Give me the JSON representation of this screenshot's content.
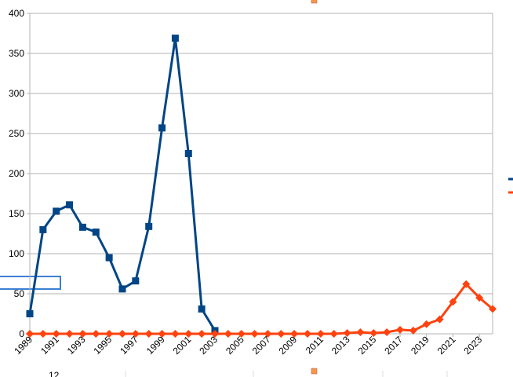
{
  "chart_data": {
    "type": "line",
    "x": [
      1989,
      1990,
      1991,
      1992,
      1993,
      1994,
      1995,
      1996,
      1997,
      1998,
      1999,
      2000,
      2001,
      2002,
      2003,
      2004,
      2005,
      2006,
      2007,
      2008,
      2009,
      2010,
      2011,
      2012,
      2013,
      2014,
      2015,
      2016,
      2017,
      2018,
      2019,
      2020,
      2021,
      2022,
      2023,
      2024
    ],
    "xlim": [
      1989,
      2024
    ],
    "xticks": [
      1989,
      1991,
      1993,
      1995,
      1997,
      1999,
      2001,
      2003,
      2005,
      2007,
      2009,
      2011,
      2013,
      2015,
      2017,
      2019,
      2021,
      2023
    ],
    "ylim": [
      0,
      400
    ],
    "yticks": [
      0,
      50,
      100,
      150,
      200,
      250,
      300,
      350,
      400
    ],
    "grid": true,
    "legend": "right",
    "series": [
      {
        "color": "#004586",
        "marker": "square",
        "values": [
          25,
          130,
          153,
          161,
          133,
          127,
          95,
          56,
          66,
          134,
          257,
          369,
          225,
          31,
          4,
          null,
          null,
          null,
          null,
          null,
          null,
          null,
          null,
          null,
          null,
          null,
          null,
          null,
          null,
          null,
          null,
          null,
          null,
          null,
          null,
          null
        ]
      },
      {
        "color": "#ff420e",
        "marker": "diamond",
        "values": [
          0,
          0,
          0,
          0,
          0,
          0,
          0,
          0,
          0,
          0,
          0,
          0,
          0,
          0,
          0,
          0,
          0,
          0,
          0,
          0,
          0,
          0,
          0,
          0,
          1,
          2,
          1,
          2,
          5,
          4,
          12,
          18,
          40,
          62,
          45,
          31
        ]
      }
    ]
  },
  "overlay_text": "12"
}
